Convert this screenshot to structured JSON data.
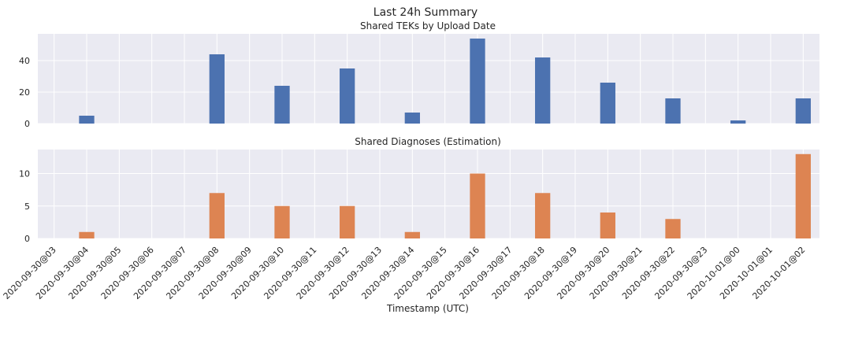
{
  "figure": {
    "title": "Last 24h Summary",
    "xlabel": "Timestamp (UTC)"
  },
  "chart_data": [
    {
      "type": "bar",
      "title": "Shared TEKs by Upload Date",
      "color": "#4C72B0",
      "ylim": [
        0,
        57
      ],
      "yticks": [
        0,
        20,
        40
      ],
      "grid": true,
      "categories": [
        "2020-09-30@03",
        "2020-09-30@04",
        "2020-09-30@05",
        "2020-09-30@06",
        "2020-09-30@07",
        "2020-09-30@08",
        "2020-09-30@09",
        "2020-09-30@10",
        "2020-09-30@11",
        "2020-09-30@12",
        "2020-09-30@13",
        "2020-09-30@14",
        "2020-09-30@15",
        "2020-09-30@16",
        "2020-09-30@17",
        "2020-09-30@18",
        "2020-09-30@19",
        "2020-09-30@20",
        "2020-09-30@21",
        "2020-09-30@22",
        "2020-09-30@23",
        "2020-10-01@00",
        "2020-10-01@01",
        "2020-10-01@02"
      ],
      "values": [
        0,
        5,
        0,
        0,
        0,
        44,
        0,
        24,
        0,
        35,
        0,
        7,
        0,
        54,
        0,
        42,
        0,
        26,
        0,
        16,
        0,
        2,
        0,
        16
      ]
    },
    {
      "type": "bar",
      "title": "Shared Diagnoses (Estimation)",
      "color": "#DD8452",
      "ylim": [
        0,
        13.7
      ],
      "yticks": [
        0,
        5,
        10
      ],
      "grid": true,
      "categories": [
        "2020-09-30@03",
        "2020-09-30@04",
        "2020-09-30@05",
        "2020-09-30@06",
        "2020-09-30@07",
        "2020-09-30@08",
        "2020-09-30@09",
        "2020-09-30@10",
        "2020-09-30@11",
        "2020-09-30@12",
        "2020-09-30@13",
        "2020-09-30@14",
        "2020-09-30@15",
        "2020-09-30@16",
        "2020-09-30@17",
        "2020-09-30@18",
        "2020-09-30@19",
        "2020-09-30@20",
        "2020-09-30@21",
        "2020-09-30@22",
        "2020-09-30@23",
        "2020-10-01@00",
        "2020-10-01@01",
        "2020-10-01@02"
      ],
      "values": [
        0,
        1,
        0,
        0,
        0,
        7,
        0,
        5,
        0,
        5,
        0,
        1,
        0,
        10,
        0,
        7,
        0,
        4,
        0,
        3,
        0,
        0,
        0,
        13
      ]
    }
  ]
}
